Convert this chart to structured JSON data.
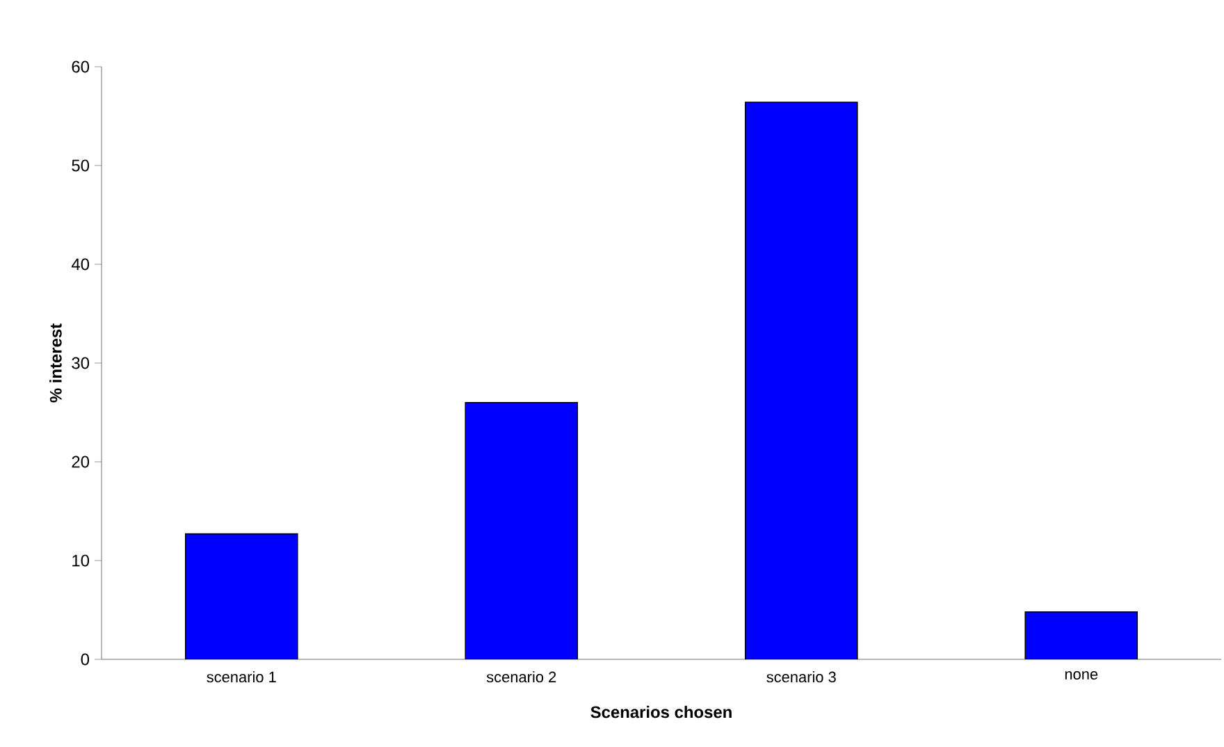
{
  "chart_data": {
    "type": "bar",
    "xlabel": "Scenarios chosen",
    "ylabel": "% interest",
    "categories": [
      "scenario 1",
      "scenario 2",
      "scenario 3",
      "none"
    ],
    "values": [
      12.7,
      26.0,
      56.4,
      4.8
    ],
    "color": "#0000ff",
    "ylim": [
      0,
      60
    ],
    "yticks": [
      0,
      10,
      20,
      30,
      40,
      50,
      60
    ]
  }
}
